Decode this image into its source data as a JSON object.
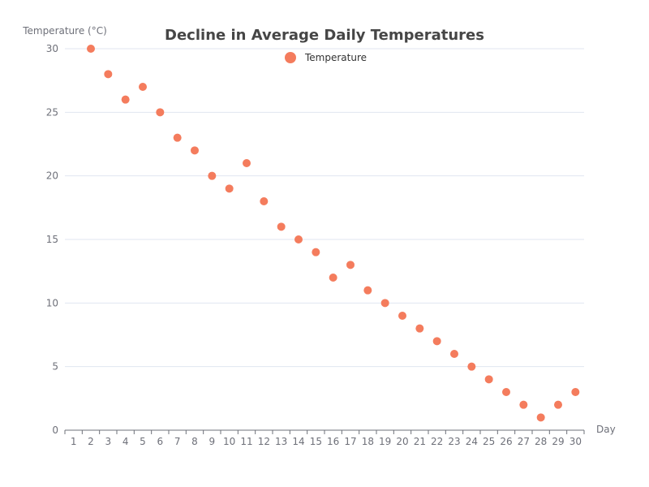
{
  "chart_data": {
    "type": "scatter",
    "title": "Decline in Average Daily Temperatures",
    "xlabel": "Day",
    "ylabel": "Temperature (°C)",
    "categories": [
      "1",
      "2",
      "3",
      "4",
      "5",
      "6",
      "7",
      "8",
      "9",
      "10",
      "11",
      "12",
      "13",
      "14",
      "15",
      "16",
      "17",
      "18",
      "19",
      "20",
      "21",
      "22",
      "23",
      "24",
      "25",
      "26",
      "27",
      "28",
      "29",
      "30"
    ],
    "ylim": [
      0,
      30
    ],
    "yticks": [
      0,
      5,
      10,
      15,
      20,
      25,
      30
    ],
    "grid": true,
    "legend_position": "top-center",
    "series": [
      {
        "name": "Temperature",
        "color": "#f47c5d",
        "points": [
          {
            "x": "2",
            "y": 30
          },
          {
            "x": "3",
            "y": 28
          },
          {
            "x": "4",
            "y": 26
          },
          {
            "x": "5",
            "y": 27
          },
          {
            "x": "6",
            "y": 25
          },
          {
            "x": "7",
            "y": 23
          },
          {
            "x": "8",
            "y": 22
          },
          {
            "x": "9",
            "y": 20
          },
          {
            "x": "10",
            "y": 19
          },
          {
            "x": "11",
            "y": 21
          },
          {
            "x": "12",
            "y": 18
          },
          {
            "x": "13",
            "y": 16
          },
          {
            "x": "14",
            "y": 15
          },
          {
            "x": "15",
            "y": 14
          },
          {
            "x": "16",
            "y": 12
          },
          {
            "x": "17",
            "y": 13
          },
          {
            "x": "18",
            "y": 11
          },
          {
            "x": "19",
            "y": 10
          },
          {
            "x": "20",
            "y": 9
          },
          {
            "x": "21",
            "y": 8
          },
          {
            "x": "22",
            "y": 7
          },
          {
            "x": "23",
            "y": 6
          },
          {
            "x": "24",
            "y": 5
          },
          {
            "x": "25",
            "y": 4
          },
          {
            "x": "26",
            "y": 3
          },
          {
            "x": "27",
            "y": 2
          },
          {
            "x": "28",
            "y": 1
          },
          {
            "x": "29",
            "y": 2
          },
          {
            "x": "30",
            "y": 3
          }
        ]
      }
    ]
  }
}
